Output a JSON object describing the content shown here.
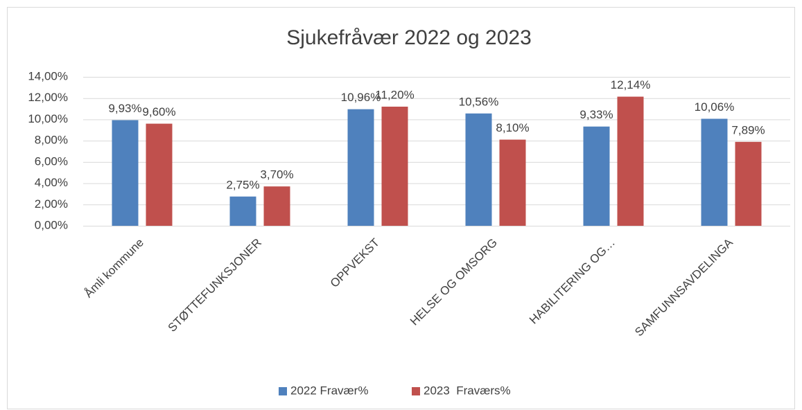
{
  "chart_data": {
    "type": "bar",
    "title": "Sjukefråvær 2022 og 2023",
    "categories": [
      "Åmli kommune",
      "STØTTEFUNKSJONER",
      "OPPVEKST",
      "HELSE OG OMSORG",
      "HABILITERING OG…",
      "SAMFUNNSAVDELINGA"
    ],
    "series": [
      {
        "name": "2022 Fravær%",
        "color": "#4f81bd",
        "values": [
          9.93,
          2.75,
          10.96,
          10.56,
          9.33,
          10.06
        ],
        "value_labels": [
          "9,93%",
          "2,75%",
          "10,96%",
          "10,56%",
          "9,33%",
          "10,06%"
        ]
      },
      {
        "name": "2023  Fraværs%",
        "color": "#c0504d",
        "values": [
          9.6,
          3.7,
          11.2,
          8.1,
          12.14,
          7.89
        ],
        "value_labels": [
          "9,60%",
          "3,70%",
          "11,20%",
          "8,10%",
          "12,14%",
          "7,89%"
        ]
      }
    ],
    "ylim": [
      0,
      14
    ],
    "yticks": [
      {
        "value": 0,
        "label": "0,00%"
      },
      {
        "value": 2,
        "label": "2,00%"
      },
      {
        "value": 4,
        "label": "4,00%"
      },
      {
        "value": 6,
        "label": "6,00%"
      },
      {
        "value": 8,
        "label": "8,00%"
      },
      {
        "value": 10,
        "label": "10,00%"
      },
      {
        "value": 12,
        "label": "12,00%"
      },
      {
        "value": 14,
        "label": "14,00%"
      }
    ],
    "grid": true,
    "legend": "bottom"
  }
}
